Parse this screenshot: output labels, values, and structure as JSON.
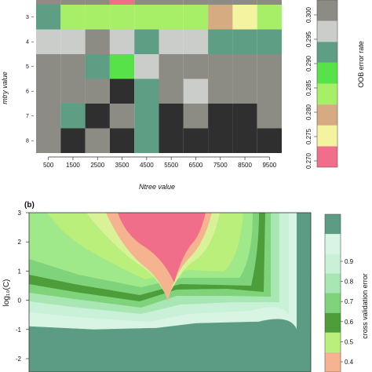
{
  "chart_data": [
    {
      "type": "heatmap",
      "xlabel": "Ntree value",
      "ylabel": "mtry value",
      "x_ticks": [
        "500",
        "1500",
        "2500",
        "3500",
        "4500",
        "5500",
        "6500",
        "7500",
        "8500",
        "9500"
      ],
      "y_ticks": [
        "3",
        "4",
        "5",
        "6",
        "7",
        "8"
      ],
      "legend_title": "OOB error rate",
      "legend_ticks": [
        "0.270",
        "0.275",
        "0.280",
        "0.285",
        "0.290",
        "0.295",
        "0.300"
      ],
      "legend_colors": [
        "#f06e8a",
        "#f3f3a0",
        "#d6ab82",
        "#a8ef68",
        "#57e24a",
        "#5d9e84",
        "#cbcdcb",
        "#8c8c84"
      ],
      "cell_colors": [
        [
          "#5d9e84",
          "#a8ef68",
          "#a8ef68",
          "#a8ef68",
          "#a8ef68",
          "#a8ef68",
          "#a8ef68",
          "#d6ab82",
          "#f3f3a0",
          "#a8ef68"
        ],
        [
          "#cbcdcb",
          "#cbcdcb",
          "#8c8c84",
          "#cbcdcb",
          "#5d9e84",
          "#cbcdcb",
          "#cbcdcb",
          "#5d9e84",
          "#5d9e84",
          "#5d9e84"
        ],
        [
          "#8c8c84",
          "#8c8c84",
          "#5d9e84",
          "#57e24a",
          "#cbcdcb",
          "#8c8c84",
          "#8c8c84",
          "#8c8c84",
          "#8c8c84",
          "#8c8c84"
        ],
        [
          "#8c8c84",
          "#8c8c84",
          "#8c8c84",
          "#2f2f2f",
          "#5d9e84",
          "#8c8c84",
          "#cbcdcb",
          "#8c8c84",
          "#8c8c84",
          "#8c8c84"
        ],
        [
          "#8c8c84",
          "#5d9e84",
          "#2f2f2f",
          "#8c8c84",
          "#5d9e84",
          "#2f2f2f",
          "#8c8c84",
          "#2f2f2f",
          "#2f2f2f",
          "#8c8c84"
        ],
        [
          "#8c8c84",
          "#2f2f2f",
          "#8c8c84",
          "#2f2f2f",
          "#5d9e84",
          "#2f2f2f",
          "#2f2f2f",
          "#2f2f2f",
          "#2f2f2f",
          "#2f2f2f"
        ]
      ]
    },
    {
      "type": "heatmap",
      "panel_label": "(b)",
      "ylabel": "log₁₀(C)",
      "y_ticks": [
        "3",
        "2",
        "1",
        "0",
        "-1",
        "-2"
      ],
      "ylim": [
        -2.8,
        3
      ],
      "legend_title": "cross validation error",
      "legend_ticks": [
        "0.4",
        "0.5",
        "0.6",
        "0.7",
        "0.8",
        "0.9"
      ],
      "legend_colors": [
        "#f5b38f",
        "#b9ef7a",
        "#4d9e3b",
        "#7fd37b",
        "#a8e6b4",
        "#c8f1d8",
        "#d8f5e4",
        "#5c9b84"
      ]
    }
  ]
}
